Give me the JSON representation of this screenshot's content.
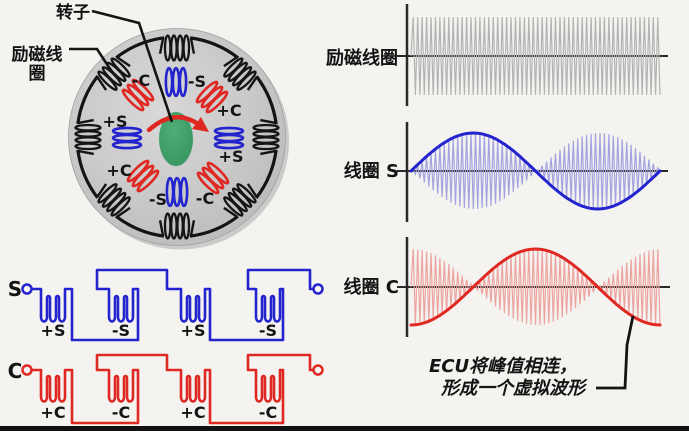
{
  "colors": {
    "background": "#f4f3f0",
    "ink": "#141414",
    "blue": "#2424cf",
    "red": "#e02823",
    "green": "#3e9b66",
    "stator_gray": "#c7c7c7",
    "carrier_gray": "#b3b3b3",
    "carrier_blue": "#a3a3e0",
    "carrier_red": "#eda4a0",
    "axis": "#2a2a2a"
  },
  "resolver": {
    "rotor_label": "转子",
    "excitation_label": "励磁线圈",
    "pole_labels": [
      "-C",
      "-S",
      "+S",
      "+C",
      "+C",
      "+S",
      "-S",
      "-C"
    ]
  },
  "circuits": [
    {
      "terminal_label": "S",
      "coil_labels": [
        "+S",
        "-S",
        "+S",
        "-S"
      ],
      "color_key": "blue"
    },
    {
      "terminal_label": "C",
      "coil_labels": [
        "+C",
        "-C",
        "+C",
        "-C"
      ],
      "color_key": "red"
    }
  ],
  "waveforms": [
    {
      "label": "励磁线圈",
      "envelope": "constant",
      "cycles": 56,
      "amplitude": 39,
      "carrier_color_key": "carrier_gray",
      "envelope_color_key": null
    },
    {
      "label": "线圈 S",
      "envelope": "sine",
      "cycles": 56,
      "amplitude": 38,
      "carrier_color_key": "carrier_blue",
      "envelope_color_key": "blue"
    },
    {
      "label": "线圈 C",
      "envelope": "negative_cosine",
      "cycles": 56,
      "amplitude": 38,
      "carrier_color_key": "carrier_red",
      "envelope_color_key": "red"
    }
  ],
  "annotation": {
    "line1": "ECU将峰值相连，",
    "line2": "形成一个虚拟波形"
  }
}
